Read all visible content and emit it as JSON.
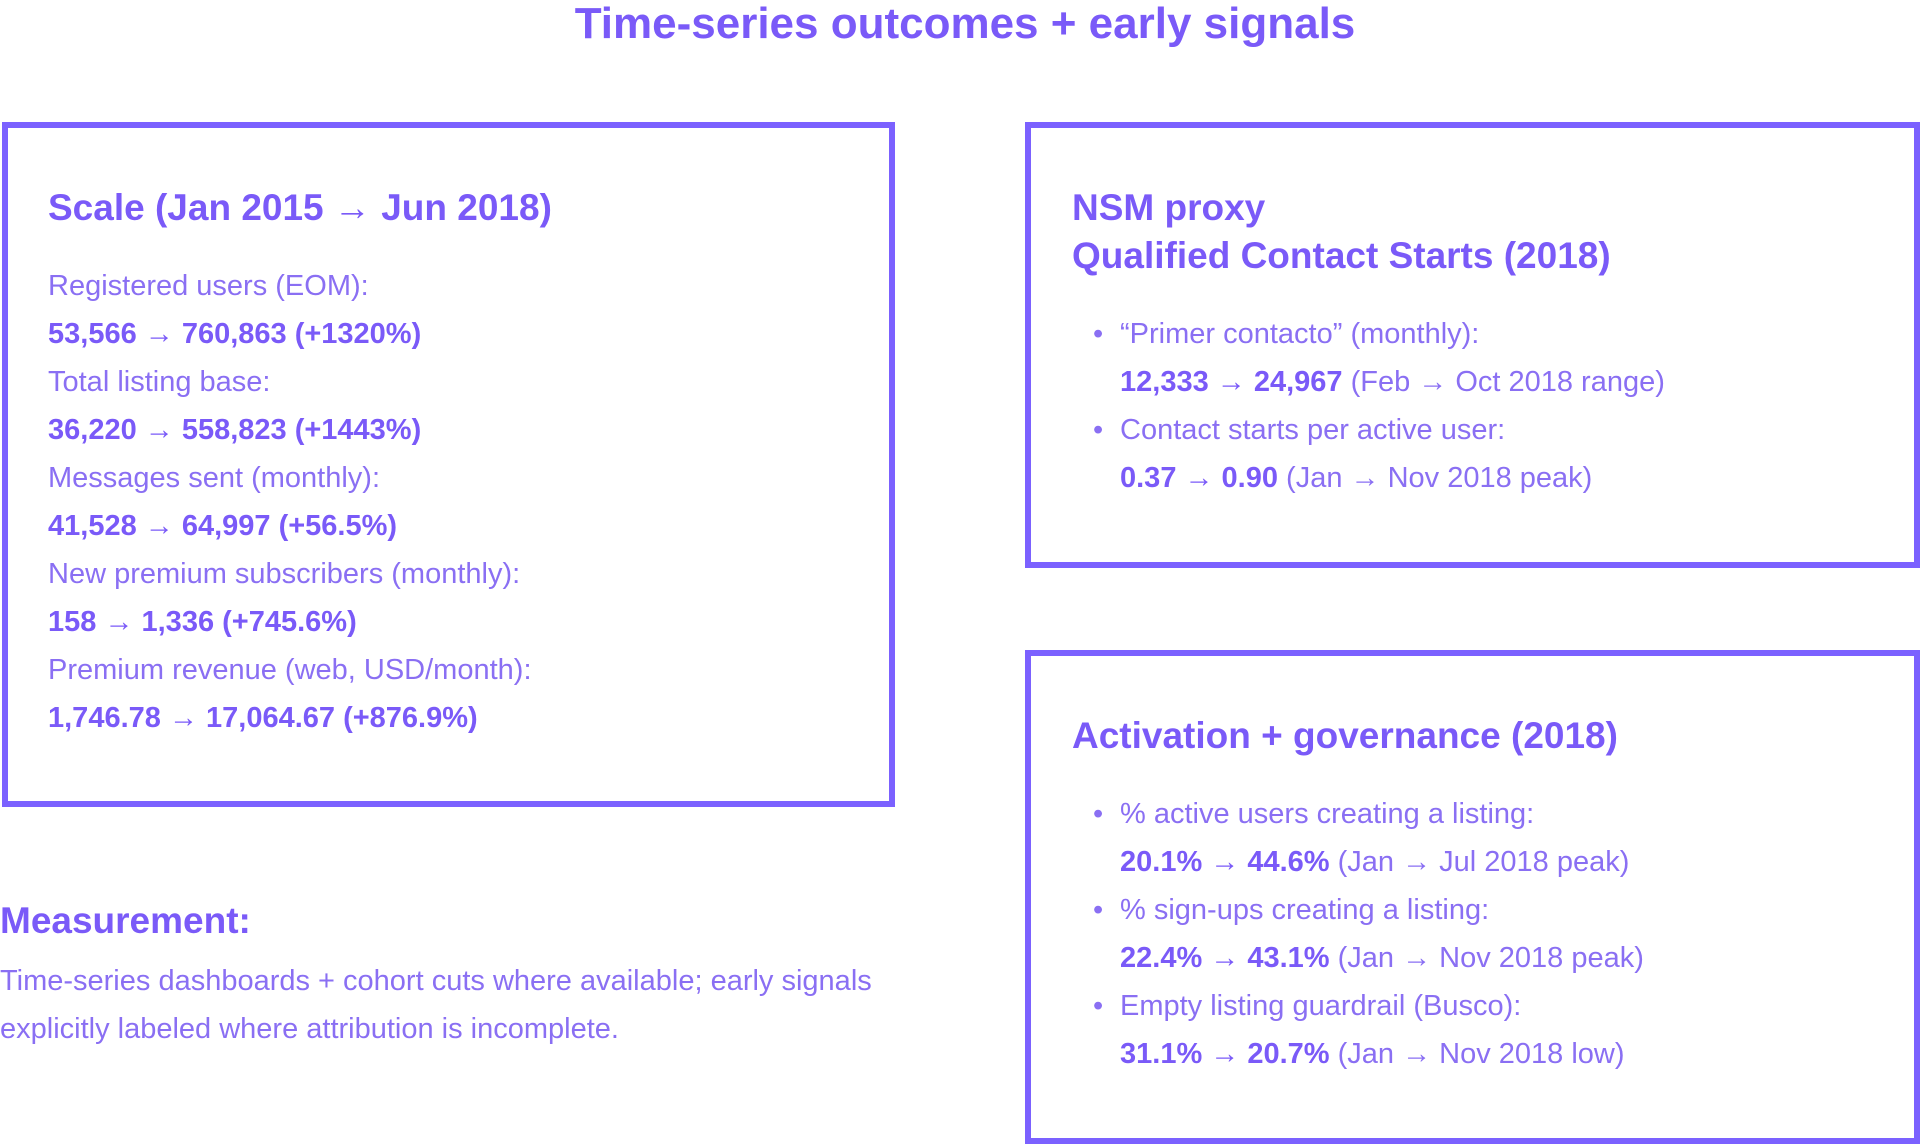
{
  "title": "Time-series outcomes + early signals",
  "scale": {
    "heading": "Scale (Jan 2015 → Jun 2018)",
    "items": [
      {
        "label": "Registered users (EOM):",
        "value": "53,566 → 760,863 (+1320%)"
      },
      {
        "label": "Total listing base:",
        "value": "36,220 → 558,823 (+1443%)"
      },
      {
        "label": "Messages sent (monthly):",
        "value": "41,528 → 64,997 (+56.5%)"
      },
      {
        "label": "New premium subscribers (monthly):",
        "value": "158 → 1,336 (+745.6%)"
      },
      {
        "label": "Premium revenue (web, USD/month):",
        "value": "1,746.78 → 17,064.67 (+876.9%)"
      }
    ]
  },
  "nsm": {
    "heading_line1": "NSM proxy",
    "heading_line2": "Qualified Contact Starts (2018)",
    "items": [
      {
        "label": "“Primer contacto” (monthly):",
        "value": "12,333 → 24,967",
        "note": " (Feb → Oct 2018 range)"
      },
      {
        "label": "Contact starts per active user:",
        "value": "0.37 → 0.90",
        "note": " (Jan → Nov 2018 peak)"
      }
    ]
  },
  "activation": {
    "heading": "Activation + governance (2018)",
    "items": [
      {
        "label": "% active users creating a listing:",
        "value": "20.1% → 44.6%",
        "note": " (Jan → Jul 2018 peak)"
      },
      {
        "label": "% sign-ups creating a listing:",
        "value": "22.4% → 43.1%",
        "note": " (Jan → Nov 2018 peak)"
      },
      {
        "label": "Empty listing guardrail (Busco):",
        "value": "31.1% → 20.7%",
        "note": " (Jan → Nov 2018 low)"
      }
    ]
  },
  "measurement": {
    "heading": "Measurement:",
    "text": "Time-series dashboards + cohort cuts where available; early signals explicitly labeled where attribution is incomplete."
  },
  "colors": {
    "accent": "#7b61ff"
  }
}
